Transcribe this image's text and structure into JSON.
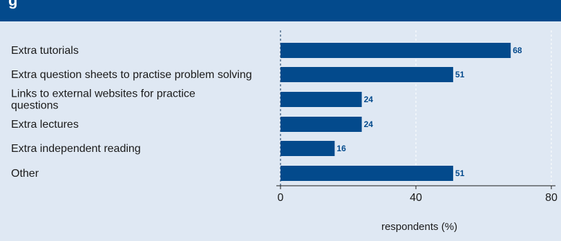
{
  "header": {
    "title_fragment": "g"
  },
  "colors": {
    "bar": "#034a8c",
    "background": "#dfe8f3",
    "header": "#034a8c",
    "value_label": "#034a8c"
  },
  "chart_data": {
    "type": "bar",
    "orientation": "horizontal",
    "categories": [
      [
        "Extra tutorials"
      ],
      [
        "Extra question sheets to practise problem solving"
      ],
      [
        "Links to external websites for practice",
        "questions"
      ],
      [
        "Extra lectures"
      ],
      [
        "Extra independent reading"
      ],
      [
        "Other"
      ]
    ],
    "values": [
      68,
      51,
      24,
      24,
      16,
      51
    ],
    "value_labels": [
      "68",
      "51",
      "24",
      "24",
      "16",
      "51"
    ],
    "xlabel": "respondents (%)",
    "xlim": [
      0,
      80
    ],
    "xticks": [
      0,
      40,
      80
    ],
    "xtick_labels": [
      "0",
      "40",
      "80"
    ],
    "grid": "vertical-dashed",
    "legend": "none"
  }
}
